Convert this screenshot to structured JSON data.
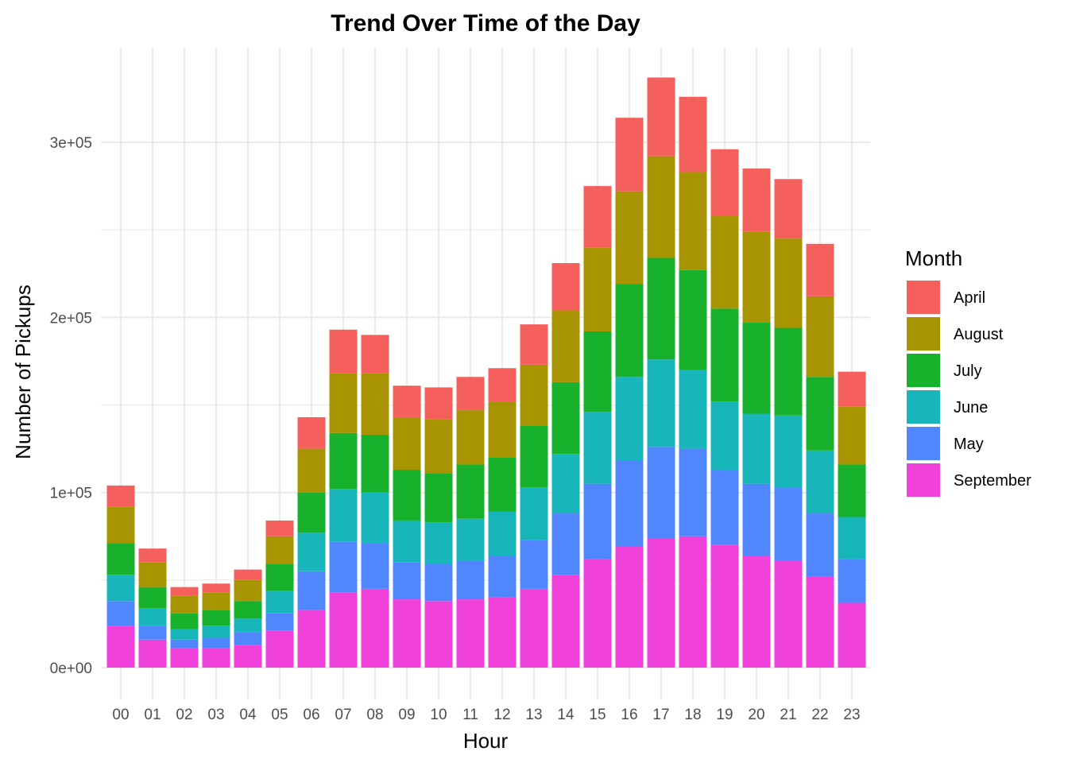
{
  "chart_data": {
    "type": "bar",
    "stacked": true,
    "title": "Trend Over Time of the Day",
    "xlabel": "Hour",
    "ylabel": "Number of Pickups",
    "ylim": [
      0,
      350000
    ],
    "yticks": [
      0,
      100000,
      200000,
      300000
    ],
    "ytick_labels": [
      "0e+00",
      "1e+05",
      "2e+05",
      "3e+05"
    ],
    "grid": true,
    "legend_title": "Month",
    "legend_position": "right",
    "categories": [
      "00",
      "01",
      "02",
      "03",
      "04",
      "05",
      "06",
      "07",
      "08",
      "09",
      "10",
      "11",
      "12",
      "13",
      "14",
      "15",
      "16",
      "17",
      "18",
      "19",
      "20",
      "21",
      "22",
      "23"
    ],
    "series": [
      {
        "name": "September",
        "color": "#F042DB",
        "values": [
          24000,
          16000,
          11000,
          11000,
          13000,
          21000,
          33000,
          43000,
          45000,
          39000,
          38000,
          39000,
          40000,
          45000,
          53000,
          62000,
          69000,
          74000,
          75000,
          70000,
          64000,
          61000,
          52000,
          37000
        ]
      },
      {
        "name": "May",
        "color": "#5086FF",
        "values": [
          14000,
          8000,
          5000,
          6000,
          7000,
          10000,
          22000,
          29000,
          26000,
          21000,
          21000,
          22000,
          24000,
          28000,
          35000,
          43000,
          49000,
          52000,
          50000,
          43000,
          41000,
          42000,
          36000,
          25000
        ]
      },
      {
        "name": "June",
        "color": "#18B6BB",
        "values": [
          15000,
          10000,
          6000,
          7000,
          8000,
          13000,
          22000,
          30000,
          29000,
          24000,
          24000,
          24000,
          25000,
          30000,
          34000,
          41000,
          48000,
          50000,
          45000,
          39000,
          40000,
          41000,
          36000,
          24000
        ]
      },
      {
        "name": "July",
        "color": "#17B12C",
        "values": [
          18000,
          12000,
          9000,
          9000,
          10000,
          15000,
          23000,
          32000,
          33000,
          29000,
          28000,
          31000,
          31000,
          35000,
          41000,
          46000,
          53000,
          58000,
          57000,
          53000,
          52000,
          50000,
          42000,
          30000
        ]
      },
      {
        "name": "August",
        "color": "#A89301",
        "values": [
          21000,
          14000,
          10000,
          10000,
          12000,
          16000,
          25000,
          34000,
          35000,
          30000,
          31000,
          31000,
          32000,
          35000,
          41000,
          48000,
          53000,
          58000,
          56000,
          53000,
          52000,
          51000,
          46000,
          33000
        ]
      },
      {
        "name": "April",
        "color": "#F5605C",
        "values": [
          12000,
          8000,
          5000,
          5000,
          6000,
          9000,
          18000,
          25000,
          22000,
          18000,
          18000,
          19000,
          19000,
          23000,
          27000,
          35000,
          42000,
          45000,
          43000,
          38000,
          36000,
          34000,
          30000,
          20000
        ]
      }
    ],
    "legend_order": [
      "April",
      "August",
      "July",
      "June",
      "May",
      "September"
    ]
  }
}
